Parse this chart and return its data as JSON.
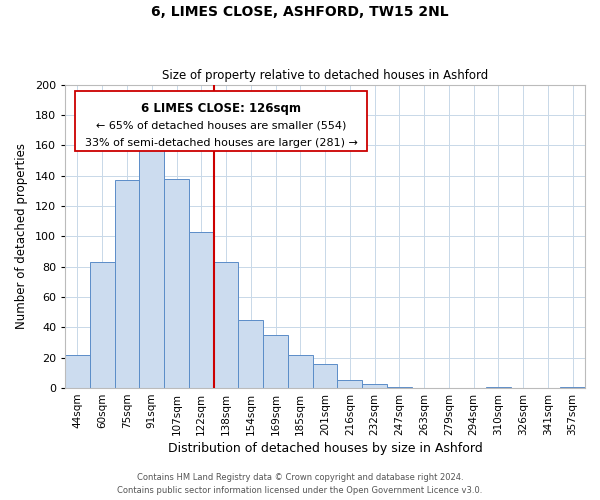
{
  "title": "6, LIMES CLOSE, ASHFORD, TW15 2NL",
  "subtitle": "Size of property relative to detached houses in Ashford",
  "xlabel": "Distribution of detached houses by size in Ashford",
  "ylabel": "Number of detached properties",
  "bar_labels": [
    "44sqm",
    "60sqm",
    "75sqm",
    "91sqm",
    "107sqm",
    "122sqm",
    "138sqm",
    "154sqm",
    "169sqm",
    "185sqm",
    "201sqm",
    "216sqm",
    "232sqm",
    "247sqm",
    "263sqm",
    "279sqm",
    "294sqm",
    "310sqm",
    "326sqm",
    "341sqm",
    "357sqm"
  ],
  "bar_values": [
    22,
    83,
    137,
    158,
    138,
    103,
    83,
    45,
    35,
    22,
    16,
    5,
    3,
    1,
    0,
    0,
    0,
    1,
    0,
    0,
    1
  ],
  "bar_color": "#ccdcef",
  "bar_edge_color": "#5b8dc8",
  "vline_x": 5.5,
  "vline_color": "#cc0000",
  "ylim": [
    0,
    200
  ],
  "yticks": [
    0,
    20,
    40,
    60,
    80,
    100,
    120,
    140,
    160,
    180,
    200
  ],
  "annotation_title": "6 LIMES CLOSE: 126sqm",
  "annotation_line1": "← 65% of detached houses are smaller (554)",
  "annotation_line2": "33% of semi-detached houses are larger (281) →",
  "annotation_box_color": "#ffffff",
  "annotation_box_edge": "#cc0000",
  "footer1": "Contains HM Land Registry data © Crown copyright and database right 2024.",
  "footer2": "Contains public sector information licensed under the Open Government Licence v3.0.",
  "background_color": "#ffffff",
  "grid_color": "#c8d8e8"
}
